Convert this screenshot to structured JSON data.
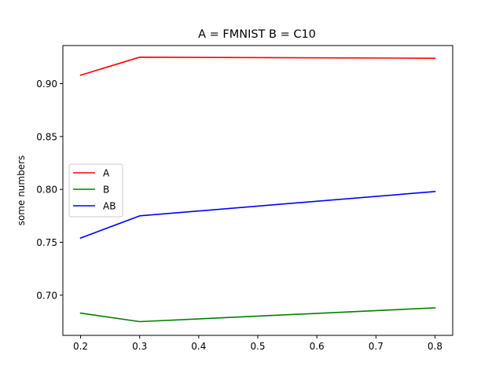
{
  "chart_data": {
    "type": "line",
    "title": "A = FMNIST B = C10",
    "xlabel": "",
    "ylabel": "some numbers",
    "x": [
      0.2,
      0.3,
      0.8
    ],
    "xlim": [
      0.17,
      0.83
    ],
    "ylim": [
      0.662,
      0.936
    ],
    "xticks": [
      0.2,
      0.3,
      0.4,
      0.5,
      0.6,
      0.7,
      0.8
    ],
    "xtick_labels": [
      "0.2",
      "0.3",
      "0.4",
      "0.5",
      "0.6",
      "0.7",
      "0.8"
    ],
    "yticks": [
      0.7,
      0.75,
      0.8,
      0.85,
      0.9
    ],
    "ytick_labels": [
      "0.70",
      "0.75",
      "0.80",
      "0.85",
      "0.90"
    ],
    "grid": false,
    "legend_position": "center-left",
    "series": [
      {
        "name": "A",
        "color": "#ff0000",
        "values": [
          0.908,
          0.925,
          0.924
        ]
      },
      {
        "name": "B",
        "color": "#008000",
        "values": [
          0.683,
          0.675,
          0.688
        ]
      },
      {
        "name": "AB",
        "color": "#0000ff",
        "values": [
          0.754,
          0.775,
          0.798
        ]
      }
    ]
  }
}
